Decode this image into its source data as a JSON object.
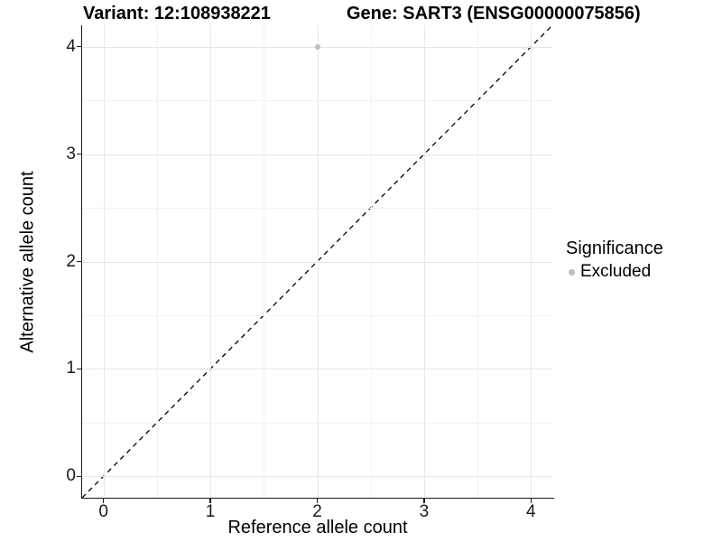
{
  "header": {
    "variant_title": "Variant: 12:108938221",
    "gene_title": "Gene: SART3 (ENSG00000075856)"
  },
  "chart_data": {
    "type": "scatter",
    "titles": [
      "Variant: 12:108938221",
      "Gene: SART3 (ENSG00000075856)"
    ],
    "xlabel": "Reference allele count",
    "ylabel": "Alternative allele count",
    "xlim": [
      -0.2,
      4.2
    ],
    "ylim": [
      -0.2,
      4.2
    ],
    "x_ticks": [
      0,
      1,
      2,
      3,
      4
    ],
    "y_ticks": [
      0,
      1,
      2,
      3,
      4
    ],
    "x_minor_ticks": [
      0.5,
      1.5,
      2.5,
      3.5
    ],
    "y_minor_ticks": [
      0.5,
      1.5,
      2.5,
      3.5
    ],
    "grid": "major+minor",
    "series": [
      {
        "name": "Excluded",
        "color": "#bdbdbd",
        "marker": "circle",
        "points": [
          {
            "x": 2,
            "y": 4
          }
        ]
      }
    ],
    "identity_line": {
      "style": "dashed",
      "color": "#000000",
      "from": [
        -0.2,
        -0.2
      ],
      "to": [
        4.2,
        4.2
      ]
    },
    "legend": {
      "title": "Significance",
      "position": "right",
      "items": [
        {
          "label": "Excluded",
          "color": "#bdbdbd",
          "marker": "circle"
        }
      ]
    }
  },
  "colors": {
    "background": "#ffffff",
    "grid_major": "#e6e6e6",
    "grid_minor": "#f2f2f2",
    "axis_line": "#1a1a1a",
    "text": "#000000",
    "point": "#bdbdbd"
  }
}
